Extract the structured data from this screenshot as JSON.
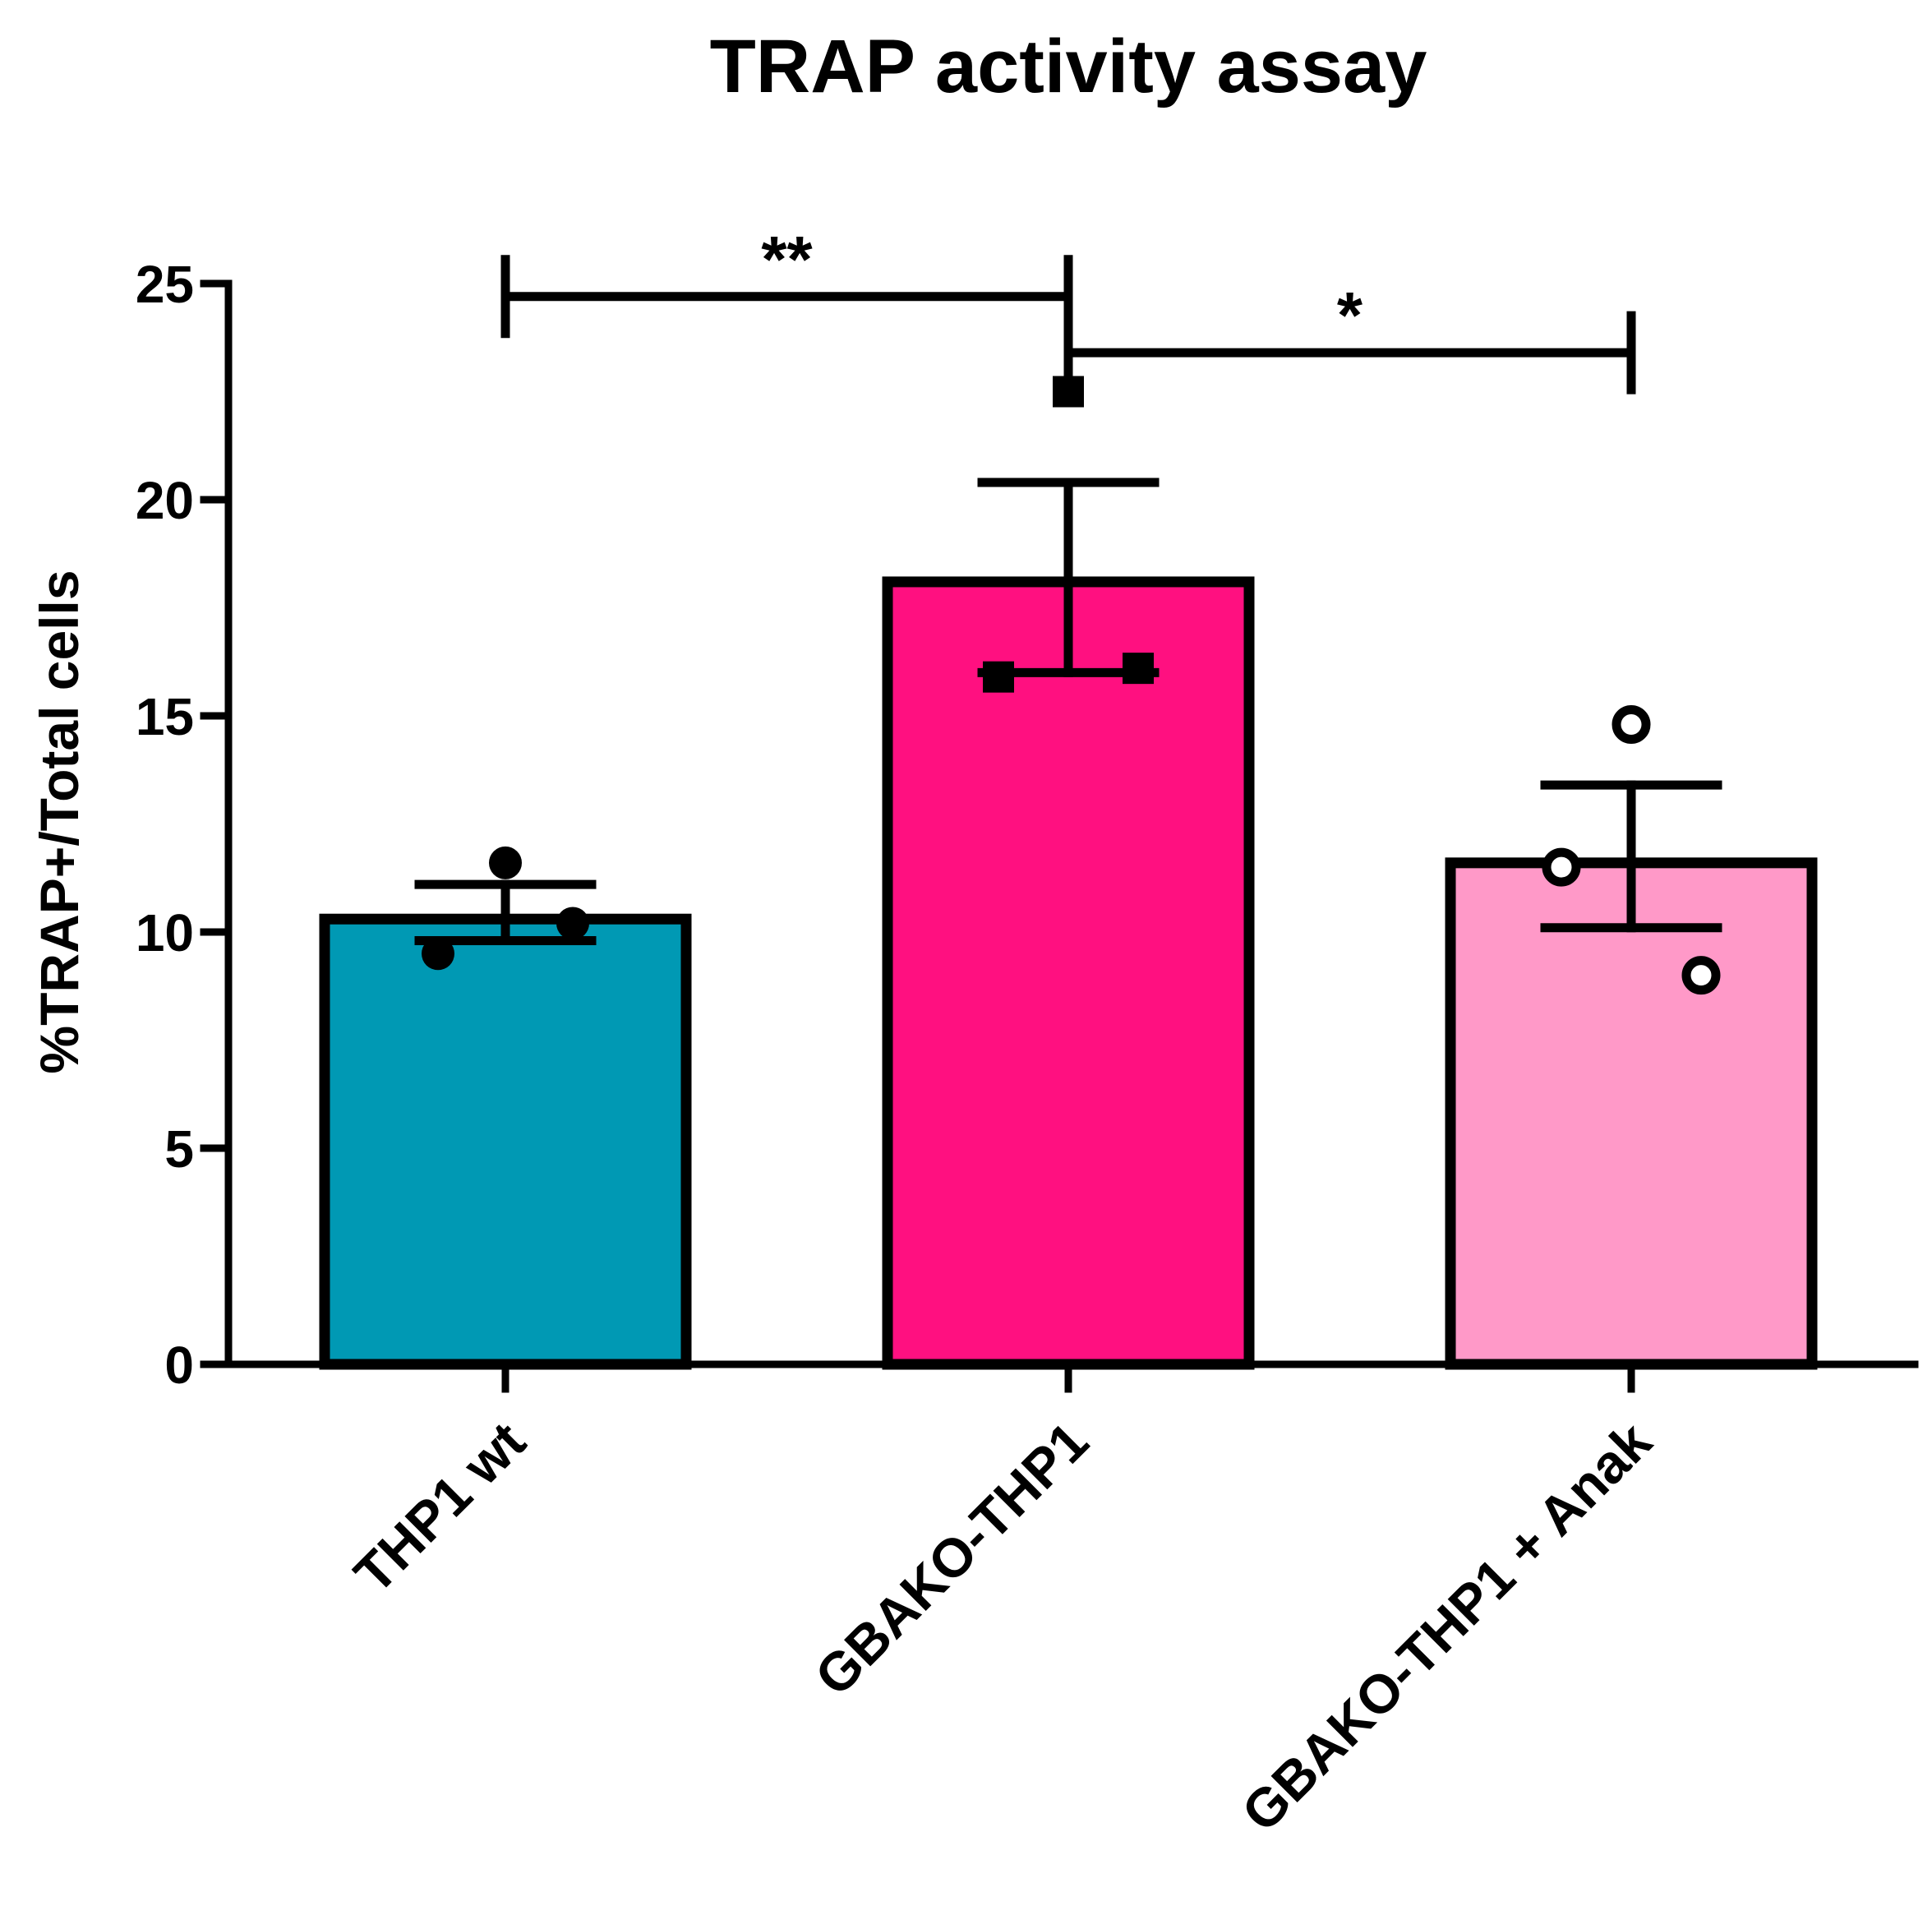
{
  "chart_data": {
    "type": "bar",
    "title": "TRAP activity assay",
    "xlabel": "",
    "ylabel": "%TRAP+/Total cells",
    "ylim": [
      0,
      25
    ],
    "yticks": [
      0,
      5,
      10,
      15,
      20,
      25
    ],
    "ytick_labels": [
      "0",
      "5",
      "10",
      "15",
      "20",
      "25"
    ],
    "grid": false,
    "legend": "none",
    "categories": [
      "THP1 wt",
      "GBAKO-THP1",
      "GBAKO-THP1 + Anak"
    ],
    "values": [
      10.3,
      18.1,
      11.6
    ],
    "error_up": [
      0.8,
      2.3,
      1.8
    ],
    "error_down": [
      0.5,
      2.1,
      1.5
    ],
    "points": [
      [
        11.6,
        9.5,
        10.2
      ],
      [
        22.5,
        15.9,
        16.1
      ],
      [
        14.8,
        11.5,
        9.0
      ]
    ],
    "point_styles": [
      "filled-circle",
      "filled-square",
      "open-circle"
    ],
    "colors": [
      "#0099b4",
      "#ff1080",
      "#ff99c8"
    ],
    "significance": [
      {
        "from": 0,
        "to": 1,
        "y": 24.7,
        "label": "**"
      },
      {
        "from": 1,
        "to": 2,
        "y": 23.4,
        "label": "*"
      }
    ]
  }
}
